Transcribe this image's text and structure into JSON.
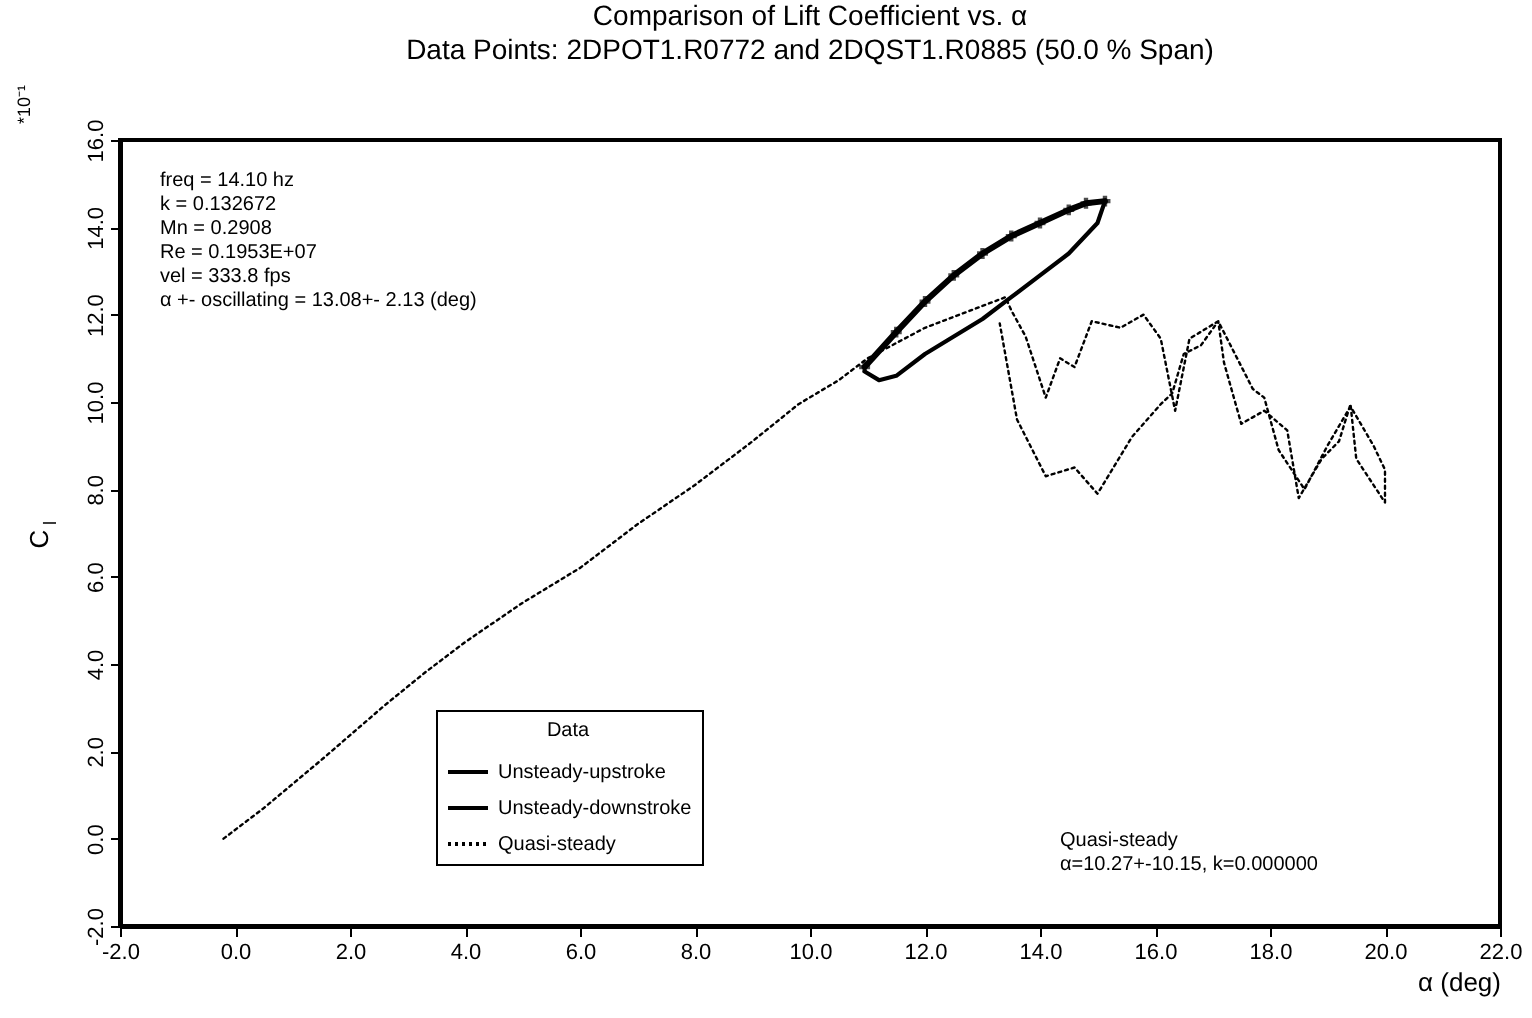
{
  "chart_data": {
    "type": "line",
    "title": "Comparison of Lift Coefficient vs. α",
    "subtitle": "Data Points: 2DPOT1.R0772 and 2DQST1.R0885 (50.0 % Span)",
    "xlabel": "α (deg)",
    "ylabel": "C$_{l}$",
    "legend_title": "Data",
    "annotations": [
      "*10⁻¹",
      "freq = 14.10 hz",
      "k = 0.132672",
      "Mn = 0.2908",
      "Re =  0.1953E+07",
      "vel = 333.8 fps",
      "α +- oscillating = 13.08+- 2.13 (deg)",
      "Quasi-steady",
      "α=10.27+-10.15, k=0.000000"
    ],
    "xlim": [
      -2,
      22
    ],
    "ylim": [
      -2,
      16
    ],
    "xticks": [
      {
        "value": -2,
        "label": "-2.0"
      },
      {
        "value": 0,
        "label": "0.0"
      },
      {
        "value": 2,
        "label": "2.0"
      },
      {
        "value": 4,
        "label": "4.0"
      },
      {
        "value": 6,
        "label": "6.0"
      },
      {
        "value": 8,
        "label": "8.0"
      },
      {
        "value": 10,
        "label": "10.0"
      },
      {
        "value": 12,
        "label": "12.0"
      },
      {
        "value": 14,
        "label": "14.0"
      },
      {
        "value": 16,
        "label": "16.0"
      },
      {
        "value": 18,
        "label": "18.0"
      },
      {
        "value": 20,
        "label": "20.0"
      },
      {
        "value": 22,
        "label": "22.0"
      }
    ],
    "yticks": [
      {
        "value": -2,
        "label": "-2.0"
      },
      {
        "value": 0,
        "label": "0.0"
      },
      {
        "value": 2,
        "label": "2.0"
      },
      {
        "value": 4,
        "label": "4.0"
      },
      {
        "value": 6,
        "label": "6.0"
      },
      {
        "value": 8,
        "label": "8.0"
      },
      {
        "value": 10,
        "label": "10.0"
      },
      {
        "value": 12,
        "label": "12.0"
      },
      {
        "value": 14,
        "label": "14.0"
      },
      {
        "value": 16,
        "label": "16.0"
      }
    ],
    "grid": false,
    "legend": "bottom left",
    "series": [
      {
        "name": "Unsteady-upstroke",
        "color": "#000000",
        "marker": "cross",
        "line_style": "solid",
        "x": [
          10.95,
          11.5,
          12.0,
          12.5,
          13.0,
          13.5,
          14.0,
          14.5,
          14.8,
          15.13
        ],
        "values": [
          10.8,
          11.6,
          12.3,
          12.9,
          13.4,
          13.8,
          14.1,
          14.4,
          14.55,
          14.6
        ]
      },
      {
        "name": "Unsteady-downstroke",
        "color": "#000000",
        "marker": "none",
        "line_style": "solid",
        "x": [
          15.13,
          15.0,
          14.5,
          14.0,
          13.5,
          13.0,
          12.5,
          12.0,
          11.5,
          11.2,
          10.95
        ],
        "values": [
          14.6,
          14.1,
          13.4,
          12.9,
          12.4,
          11.9,
          11.5,
          11.1,
          10.6,
          10.5,
          10.7
        ]
      },
      {
        "name": "Quasi-steady",
        "color": "#000000",
        "marker": "none",
        "line_style": "dotted",
        "x": [
          -0.2,
          0.5,
          1.5,
          2.6,
          3.3,
          4.0,
          5.0,
          6.0,
          7.0,
          8.0,
          9.0,
          9.8,
          10.5,
          11.0,
          12.0,
          13.0,
          13.4,
          13.5,
          13.75,
          14.1,
          14.35,
          14.6,
          14.9,
          15.4,
          15.8,
          16.1,
          16.35,
          16.6,
          17.1,
          17.7,
          17.9,
          18.15,
          18.6,
          19.0,
          19.4,
          19.8,
          20.0,
          20.0,
          19.95,
          19.5,
          19.4,
          19.2,
          18.9,
          18.5,
          18.3,
          17.9,
          17.5,
          17.2,
          17.1,
          16.8,
          16.5,
          16.3,
          16.1,
          15.6,
          15.0,
          14.6,
          14.1,
          13.6,
          13.3
        ],
        "values": [
          0.0,
          0.7,
          1.8,
          3.05,
          3.8,
          4.5,
          5.4,
          6.2,
          7.2,
          8.1,
          9.1,
          9.95,
          10.5,
          11.0,
          11.7,
          12.2,
          12.4,
          12.1,
          11.5,
          10.1,
          11.0,
          10.8,
          11.85,
          11.7,
          12.0,
          11.45,
          9.8,
          11.45,
          11.85,
          10.3,
          10.1,
          8.9,
          8.0,
          9.0,
          9.9,
          9.0,
          8.45,
          7.7,
          7.8,
          8.7,
          9.95,
          9.1,
          8.7,
          7.8,
          9.35,
          9.8,
          9.5,
          10.9,
          11.85,
          11.3,
          11.1,
          10.2,
          9.95,
          9.2,
          7.9,
          8.5,
          8.3,
          9.6,
          11.8
        ]
      }
    ]
  }
}
